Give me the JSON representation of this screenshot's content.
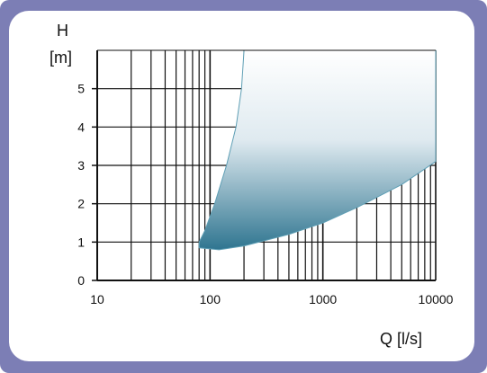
{
  "chart_data": {
    "type": "area",
    "x_scale": "log",
    "xlim": [
      10,
      10000
    ],
    "ylim": [
      0,
      6
    ],
    "x_ticks": [
      10,
      100,
      1000,
      10000
    ],
    "x_tick_labels": [
      "10",
      "100",
      "1000",
      "10000"
    ],
    "y_ticks": [
      0,
      1,
      2,
      3,
      4,
      5
    ],
    "y_tick_labels": [
      "0",
      "1",
      "2",
      "3",
      "4",
      "5"
    ],
    "xlabel": "Q [l/s]",
    "ylabel_line1": "H",
    "ylabel_line2": "[m]",
    "grid": true,
    "region_upper_edge": [
      {
        "x": 80,
        "y": 1.0
      },
      {
        "x": 90,
        "y": 1.3
      },
      {
        "x": 110,
        "y": 2.0
      },
      {
        "x": 140,
        "y": 3.0
      },
      {
        "x": 170,
        "y": 4.0
      },
      {
        "x": 190,
        "y": 5.0
      },
      {
        "x": 200,
        "y": 6.0
      }
    ],
    "region_right_edge": [
      {
        "x": 10000,
        "y": 6.0
      },
      {
        "x": 10000,
        "y": 3.1
      }
    ],
    "region_lower_edge": [
      {
        "x": 10000,
        "y": 3.1
      },
      {
        "x": 5000,
        "y": 2.5
      },
      {
        "x": 2000,
        "y": 1.9
      },
      {
        "x": 1000,
        "y": 1.5
      },
      {
        "x": 500,
        "y": 1.2
      },
      {
        "x": 200,
        "y": 0.9
      },
      {
        "x": 120,
        "y": 0.8
      },
      {
        "x": 80,
        "y": 0.85
      }
    ],
    "colors": {
      "region_top": "#ffffff",
      "region_bottom": "#2f7590",
      "region_stroke": "#5f9fb5",
      "grid": "#111111",
      "frame": "#7c7eb5"
    }
  }
}
